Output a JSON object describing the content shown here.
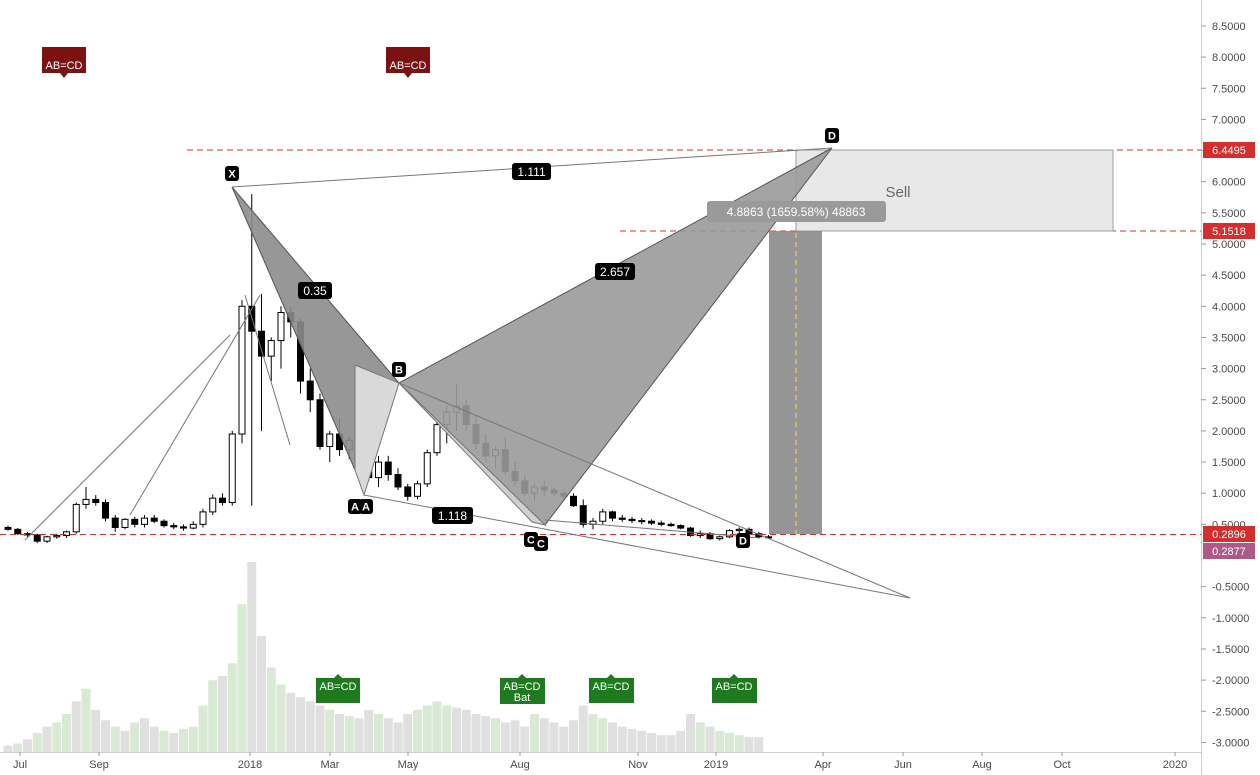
{
  "chart_data": {
    "type": "candlestick",
    "title": "",
    "xlabel": "",
    "ylabel": "",
    "ylim": [
      -3.1,
      8.7
    ],
    "y_ticks": [
      "8.5000",
      "8.0000",
      "7.5000",
      "7.0000",
      "6.5000",
      "6.0000",
      "5.5000",
      "5.0000",
      "4.5000",
      "4.0000",
      "3.5000",
      "3.0000",
      "2.5000",
      "2.0000",
      "1.5000",
      "1.0000",
      "0.5000",
      "-0.5000",
      "-1.0000",
      "-1.5000",
      "-2.0000",
      "-2.5000",
      "-3.0000"
    ],
    "x_ticks": [
      "Jul",
      "Sep",
      "2018",
      "Mar",
      "May",
      "Aug",
      "Nov",
      "2019",
      "Apr",
      "Jun",
      "Aug",
      "Oct",
      "2020"
    ],
    "price_tags": [
      {
        "value": "6.4495",
        "price": 6.4495,
        "color": "#d32f2f"
      },
      {
        "value": "5.1518",
        "price": 5.1518,
        "color": "#d32f2f"
      },
      {
        "value": "0.2896",
        "price": 0.2896,
        "color": "#d32f2f"
      },
      {
        "value": "0.2877",
        "price": 0.2877,
        "color": "#b0588a"
      }
    ],
    "candles": [
      [
        0.45,
        0.48,
        0.4,
        0.42
      ],
      [
        0.42,
        0.44,
        0.33,
        0.35
      ],
      [
        0.35,
        0.38,
        0.3,
        0.33
      ],
      [
        0.33,
        0.35,
        0.2,
        0.23
      ],
      [
        0.23,
        0.32,
        0.2,
        0.3
      ],
      [
        0.3,
        0.35,
        0.27,
        0.32
      ],
      [
        0.32,
        0.4,
        0.28,
        0.38
      ],
      [
        0.38,
        0.85,
        0.35,
        0.82
      ],
      [
        0.82,
        1.1,
        0.75,
        0.9
      ],
      [
        0.9,
        0.97,
        0.8,
        0.85
      ],
      [
        0.85,
        0.9,
        0.55,
        0.6
      ],
      [
        0.6,
        0.65,
        0.38,
        0.45
      ],
      [
        0.45,
        0.6,
        0.42,
        0.58
      ],
      [
        0.58,
        0.62,
        0.45,
        0.5
      ],
      [
        0.5,
        0.65,
        0.45,
        0.6
      ],
      [
        0.6,
        0.65,
        0.52,
        0.55
      ],
      [
        0.55,
        0.58,
        0.45,
        0.48
      ],
      [
        0.48,
        0.52,
        0.42,
        0.46
      ],
      [
        0.46,
        0.5,
        0.4,
        0.44
      ],
      [
        0.44,
        0.55,
        0.42,
        0.5
      ],
      [
        0.5,
        0.75,
        0.45,
        0.7
      ],
      [
        0.7,
        0.98,
        0.65,
        0.92
      ],
      [
        0.92,
        1.0,
        0.8,
        0.85
      ],
      [
        0.85,
        2.0,
        0.8,
        1.95
      ],
      [
        1.95,
        4.1,
        1.8,
        4.0
      ],
      [
        4.0,
        5.8,
        0.8,
        3.6
      ],
      [
        3.6,
        4.2,
        2.0,
        3.2
      ],
      [
        3.2,
        3.5,
        2.8,
        3.45
      ],
      [
        3.45,
        4.0,
        3.0,
        3.9
      ],
      [
        3.9,
        4.0,
        3.5,
        3.75
      ],
      [
        3.75,
        3.8,
        2.6,
        2.8
      ],
      [
        2.8,
        3.0,
        2.3,
        2.5
      ],
      [
        2.5,
        2.6,
        1.7,
        1.75
      ],
      [
        1.75,
        2.0,
        1.5,
        1.95
      ],
      [
        1.95,
        2.2,
        1.6,
        1.7
      ],
      [
        1.7,
        1.9,
        1.55,
        1.85
      ],
      [
        1.85,
        1.95,
        1.6,
        1.8
      ],
      [
        1.8,
        1.85,
        1.2,
        1.25
      ],
      [
        1.25,
        1.6,
        1.1,
        1.5
      ],
      [
        1.5,
        1.6,
        1.2,
        1.3
      ],
      [
        1.3,
        1.4,
        1.05,
        1.1
      ],
      [
        1.1,
        1.15,
        0.88,
        0.95
      ],
      [
        0.95,
        1.2,
        0.9,
        1.15
      ],
      [
        1.15,
        1.7,
        1.1,
        1.65
      ],
      [
        1.65,
        2.2,
        1.6,
        2.1
      ],
      [
        2.1,
        2.4,
        1.8,
        2.3
      ],
      [
        2.3,
        2.75,
        2.0,
        2.4
      ],
      [
        2.4,
        2.5,
        2.0,
        2.1
      ],
      [
        2.1,
        2.25,
        1.7,
        1.8
      ],
      [
        1.8,
        1.95,
        1.5,
        1.6
      ],
      [
        1.6,
        1.75,
        1.4,
        1.7
      ],
      [
        1.7,
        1.9,
        1.3,
        1.35
      ],
      [
        1.35,
        1.5,
        1.1,
        1.2
      ],
      [
        1.2,
        1.3,
        0.95,
        1.0
      ],
      [
        1.0,
        1.15,
        0.88,
        1.1
      ],
      [
        1.1,
        1.2,
        0.95,
        1.05
      ],
      [
        1.05,
        1.1,
        0.95,
        1.0
      ],
      [
        1.0,
        1.05,
        0.9,
        0.95
      ],
      [
        0.95,
        1.0,
        0.78,
        0.8
      ],
      [
        0.8,
        0.9,
        0.45,
        0.5
      ],
      [
        0.5,
        0.6,
        0.42,
        0.55
      ],
      [
        0.55,
        0.75,
        0.5,
        0.7
      ],
      [
        0.7,
        0.72,
        0.55,
        0.6
      ],
      [
        0.6,
        0.65,
        0.54,
        0.58
      ],
      [
        0.58,
        0.62,
        0.52,
        0.56
      ],
      [
        0.56,
        0.6,
        0.5,
        0.55
      ],
      [
        0.55,
        0.58,
        0.49,
        0.52
      ],
      [
        0.52,
        0.56,
        0.47,
        0.5
      ],
      [
        0.5,
        0.53,
        0.46,
        0.48
      ],
      [
        0.48,
        0.5,
        0.42,
        0.44
      ],
      [
        0.44,
        0.46,
        0.3,
        0.32
      ],
      [
        0.32,
        0.4,
        0.28,
        0.35
      ],
      [
        0.35,
        0.38,
        0.25,
        0.27
      ],
      [
        0.27,
        0.32,
        0.24,
        0.3
      ],
      [
        0.3,
        0.42,
        0.28,
        0.4
      ],
      [
        0.4,
        0.45,
        0.35,
        0.42
      ],
      [
        0.42,
        0.45,
        0.33,
        0.35
      ],
      [
        0.35,
        0.38,
        0.28,
        0.3
      ],
      [
        0.3,
        0.33,
        0.27,
        0.29
      ]
    ],
    "volumes": [
      3,
      4,
      6,
      9,
      12,
      14,
      18,
      24,
      30,
      20,
      15,
      12,
      10,
      14,
      16,
      12,
      10,
      9,
      11,
      12,
      22,
      34,
      36,
      42,
      70,
      90,
      55,
      40,
      32,
      28,
      26,
      24,
      22,
      20,
      18,
      17,
      16,
      20,
      18,
      16,
      14,
      18,
      20,
      22,
      24,
      22,
      21,
      20,
      18,
      17,
      16,
      14,
      15,
      12,
      18,
      16,
      14,
      12,
      15,
      22,
      18,
      16,
      14,
      12,
      11,
      10,
      9,
      8,
      8,
      10,
      18,
      14,
      12,
      10,
      9,
      8,
      7,
      7
    ],
    "volume_colors": [
      "#e0e0e0",
      "#d8ead3",
      "#e0e0e0",
      "#d8ead3",
      "#e0e0e0",
      "#d8ead3",
      "#d8ead3",
      "#e0e0e0",
      "#d8ead3",
      "#e0e0e0",
      "#e0e0e0",
      "#d8ead3",
      "#e0e0e0",
      "#d8ead3",
      "#e0e0e0",
      "#e0e0e0",
      "#d8ead3",
      "#e0e0e0",
      "#d8ead3",
      "#d8ead3",
      "#d8ead3",
      "#d8ead3",
      "#e0e0e0",
      "#d8ead3",
      "#d8ead3",
      "#e0e0e0",
      "#e0e0e0",
      "#d8ead3",
      "#d8ead3",
      "#e0e0e0",
      "#e0e0e0",
      "#e0e0e0",
      "#e0e0e0",
      "#d8ead3",
      "#e0e0e0",
      "#d8ead3",
      "#e0e0e0",
      "#e0e0e0",
      "#d8ead3",
      "#e0e0e0",
      "#e0e0e0",
      "#e0e0e0",
      "#d8ead3",
      "#d8ead3",
      "#d8ead3",
      "#d8ead3",
      "#e0e0e0",
      "#e0e0e0",
      "#e0e0e0",
      "#e0e0e0",
      "#d8ead3",
      "#e0e0e0",
      "#e0e0e0",
      "#e0e0e0",
      "#d8ead3",
      "#e0e0e0",
      "#e0e0e0",
      "#e0e0e0",
      "#e0e0e0",
      "#e0e0e0",
      "#d8ead3",
      "#d8ead3",
      "#e0e0e0",
      "#e0e0e0",
      "#e0e0e0",
      "#e0e0e0",
      "#e0e0e0",
      "#e0e0e0",
      "#e0e0e0",
      "#e0e0e0",
      "#e0e0e0",
      "#d8ead3",
      "#e0e0e0",
      "#d8ead3",
      "#d8ead3",
      "#d8ead3",
      "#e0e0e0",
      "#e0e0e0"
    ],
    "pattern_labels": {
      "X": "X",
      "A": "A",
      "B": "B",
      "C": "C",
      "D": "D"
    },
    "ratios": {
      "xb": "0.35",
      "xd": "1.111",
      "bd": "2.657",
      "ac": "1.118"
    },
    "target_box": {
      "label": "Sell",
      "top": 6.4495,
      "bottom": 5.1518
    },
    "measure_label": "4.8863 (1659.58%) 48863",
    "marker_labels": {
      "abcd": "AB=CD",
      "bat": "Bat"
    }
  }
}
